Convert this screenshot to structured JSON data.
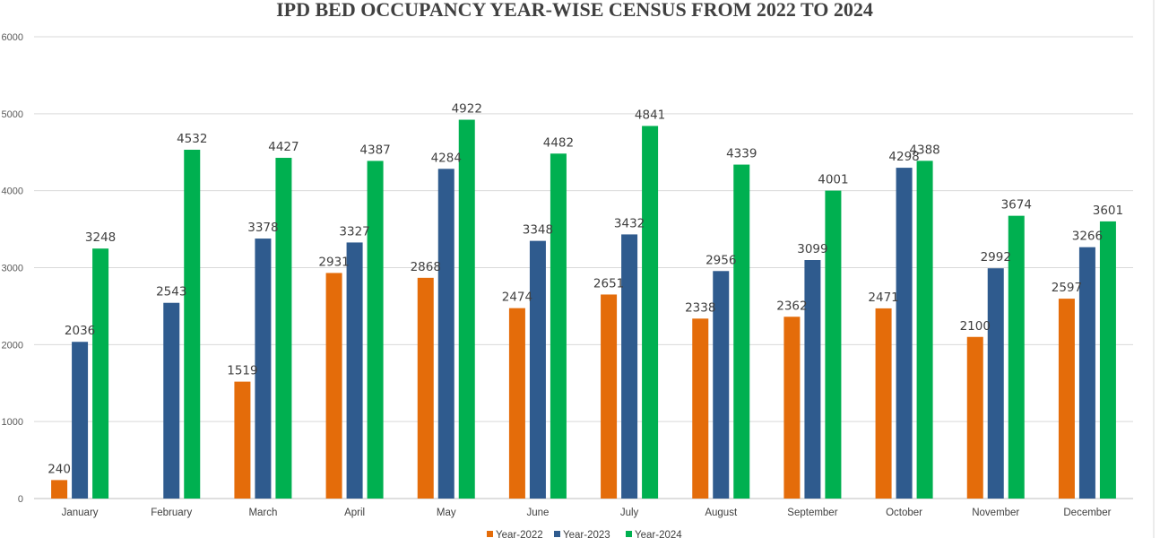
{
  "chart_data": {
    "type": "bar",
    "title": "IPD BED OCCUPANCY YEAR-WISE CENSUS FROM 2022 TO 2024",
    "xlabel": "",
    "ylabel": "",
    "ylim": [
      0,
      6000
    ],
    "yticks": [
      0,
      1000,
      2000,
      3000,
      4000,
      5000,
      6000
    ],
    "grid": true,
    "legend_position": "bottom",
    "categories": [
      "January",
      "February",
      "March",
      "April",
      "May",
      "June",
      "July",
      "August",
      "September",
      "October",
      "November",
      "December"
    ],
    "series": [
      {
        "name": "Year-2022",
        "color": "#e46c0a",
        "values": [
          240,
          null,
          1519,
          2931,
          2868,
          2474,
          2651,
          2338,
          2362,
          2471,
          2100,
          2597
        ]
      },
      {
        "name": "Year-2023",
        "color": "#2f5b8e",
        "values": [
          2036,
          2543,
          3378,
          3327,
          4284,
          3348,
          3432,
          2956,
          3099,
          4298,
          2992,
          3266
        ]
      },
      {
        "name": "Year-2024",
        "color": "#00b050",
        "values": [
          3248,
          4532,
          4427,
          4387,
          4922,
          4482,
          4841,
          4339,
          4001,
          4388,
          3674,
          3601
        ]
      }
    ]
  }
}
